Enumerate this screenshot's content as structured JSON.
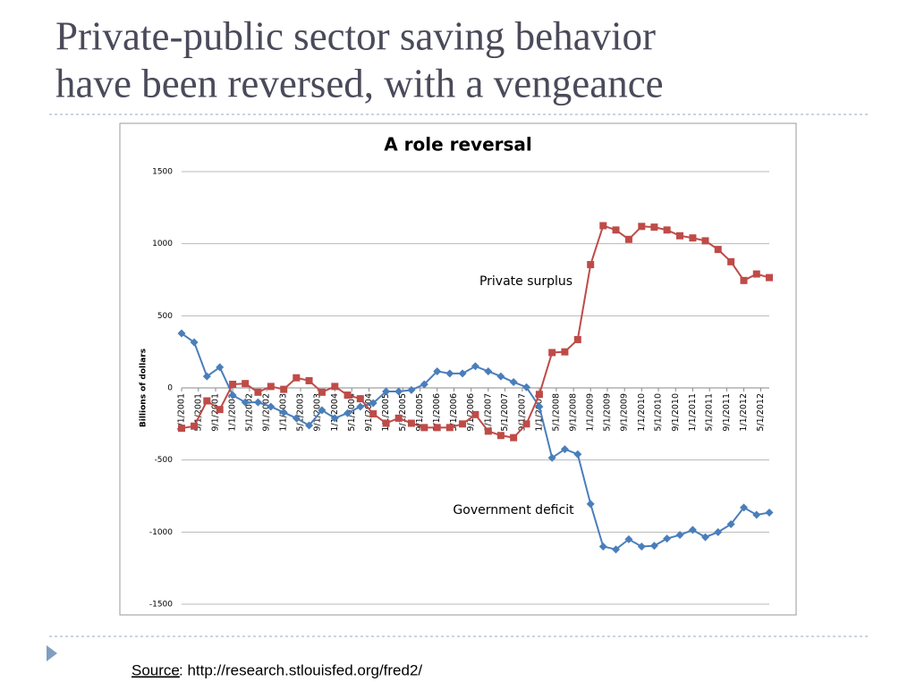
{
  "slide": {
    "title_lines": [
      "Private-public sector saving behavior",
      "have been reversed, with a vengeance"
    ],
    "source_label": "Source",
    "source_text": ":  http://research.stlouisfed.org/fred2/"
  },
  "chart_data": {
    "type": "line",
    "title": "A role reversal",
    "y_label": "Billions of dollars",
    "x": [
      "1/1/2001",
      "4/1/2001",
      "7/1/2001",
      "10/1/2001",
      "1/1/2002",
      "4/1/2002",
      "7/1/2002",
      "10/1/2002",
      "1/1/2003",
      "4/1/2003",
      "7/1/2003",
      "10/1/2003",
      "1/1/2004",
      "4/1/2004",
      "7/1/2004",
      "10/1/2004",
      "1/1/2005",
      "4/1/2005",
      "7/1/2005",
      "10/1/2005",
      "1/1/2006",
      "4/1/2006",
      "7/1/2006",
      "10/1/2006",
      "1/1/2007",
      "4/1/2007",
      "7/1/2007",
      "10/1/2007",
      "1/1/2008",
      "4/1/2008",
      "7/1/2008",
      "10/1/2008",
      "1/1/2009",
      "4/1/2009",
      "7/1/2009",
      "10/1/2009",
      "1/1/2010",
      "4/1/2010",
      "7/1/2010",
      "10/1/2010",
      "1/1/2011",
      "4/1/2011",
      "7/1/2011",
      "10/1/2011",
      "1/1/2012",
      "4/1/2012",
      "7/1/2012"
    ],
    "xlim": [
      "1/1/2001",
      "7/1/2012"
    ],
    "xticks": [
      "1/1/2001",
      "5/1/2001",
      "9/1/2001",
      "1/1/2002",
      "5/1/2002",
      "9/1/2002",
      "1/1/2003",
      "5/1/2003",
      "9/1/2003",
      "1/1/2004",
      "5/1/2004",
      "9/1/2004",
      "1/1/2005",
      "5/1/2005",
      "9/1/2005",
      "1/1/2006",
      "5/1/2006",
      "9/1/2006",
      "1/1/2007",
      "5/1/2007",
      "9/1/2007",
      "1/1/2008",
      "5/1/2008",
      "9/1/2008",
      "1/1/2009",
      "5/1/2009",
      "9/1/2009",
      "1/1/2010",
      "5/1/2010",
      "9/1/2010",
      "1/1/2011",
      "5/1/2011",
      "9/1/2011",
      "1/1/2012",
      "5/1/2012"
    ],
    "ylim": [
      -1500,
      1500
    ],
    "yticks": [
      -1500,
      -1000,
      -500,
      0,
      500,
      1000,
      1500
    ],
    "grid": true,
    "series": [
      {
        "name": "Government deficit",
        "color": "#4a7ebb",
        "marker": "diamond",
        "values": [
          378,
          316,
          80,
          143,
          -50,
          -100,
          -100,
          -130,
          -170,
          -210,
          -260,
          -155,
          -210,
          -175,
          -130,
          -105,
          -25,
          -25,
          -15,
          25,
          115,
          100,
          100,
          150,
          115,
          80,
          40,
          5,
          -130,
          -485,
          -425,
          -460,
          -805,
          -1100,
          -1120,
          -1050,
          -1100,
          -1095,
          -1045,
          -1020,
          -985,
          -1035,
          -1000,
          -945,
          -830,
          -880,
          -865
        ]
      },
      {
        "name": "Private surplus",
        "color": "#be4b48",
        "marker": "square",
        "values": [
          -280,
          -265,
          -90,
          -150,
          25,
          30,
          -30,
          10,
          -10,
          70,
          50,
          -30,
          10,
          -50,
          -75,
          -180,
          -245,
          -210,
          -245,
          -275,
          -275,
          -275,
          -250,
          -185,
          -300,
          -330,
          -345,
          -250,
          -45,
          245,
          250,
          335,
          855,
          1125,
          1095,
          1030,
          1120,
          1115,
          1095,
          1055,
          1040,
          1020,
          960,
          875,
          745,
          790,
          765
        ]
      }
    ]
  }
}
